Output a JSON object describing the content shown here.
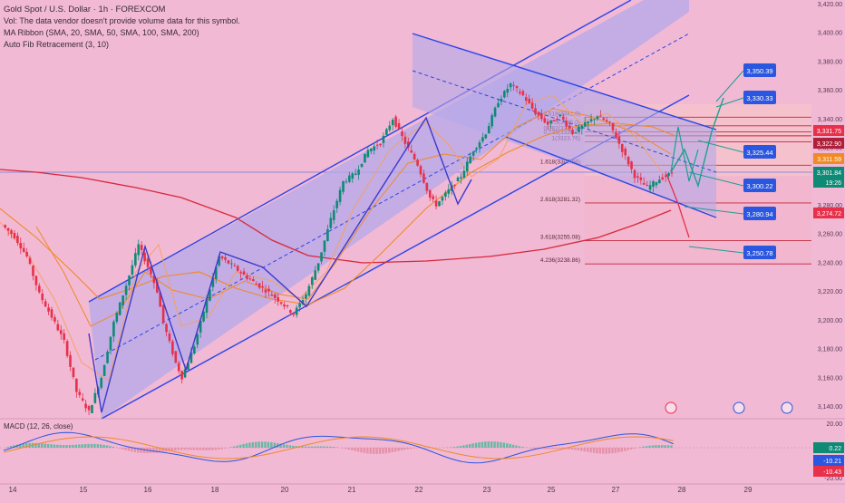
{
  "header": {
    "title": "Gold Spot / U.S. Dollar · 1h · FOREXCOM",
    "volume_note": "Vol: The data vendor doesn't provide volume data for this symbol.",
    "ma_ribbon": "MA Ribbon (SMA, 20, SMA, 50, SMA, 100, SMA, 200)",
    "fib": "Auto Fib Retracement (3, 10)"
  },
  "macd": {
    "label": "MACD (12, 26, close)"
  },
  "colors": {
    "background": "#f1b9d4",
    "channel_fill": "#b4a8ea",
    "channel_line": "#2a45e8",
    "up_candle": "#0e8a75",
    "down_candle": "#e8304a",
    "ma_fast": "#f08a24",
    "ma_slow": "#d8283a",
    "projection": "#1f9e8f",
    "price_box": "#2b56e0"
  },
  "chart_data": {
    "type": "candlestick",
    "symbol": "Gold Spot / U.S. Dollar",
    "interval": "1h",
    "source": "FOREXCOM",
    "x_ticks": [
      "14",
      "15",
      "16",
      "18",
      "20",
      "21",
      "22",
      "23",
      "25",
      "27",
      "28",
      "29"
    ],
    "y_ticks": [
      "3,140.00",
      "3,160.00",
      "3,180.00",
      "3,200.00",
      "3,220.00",
      "3,240.00",
      "3,260.00",
      "3,280.00",
      "3,300.00",
      "3,320.00",
      "3,340.00",
      "3,360.00",
      "3,380.00",
      "3,400.00",
      "3,420.00"
    ],
    "ylim": [
      3136,
      3422
    ],
    "price_path": [
      [
        0,
        3266
      ],
      [
        4,
        3258
      ],
      [
        8,
        3244
      ],
      [
        12,
        3218
      ],
      [
        16,
        3202
      ],
      [
        20,
        3185
      ],
      [
        24,
        3150
      ],
      [
        28,
        3136
      ],
      [
        32,
        3160
      ],
      [
        36,
        3198
      ],
      [
        40,
        3224
      ],
      [
        44,
        3252
      ],
      [
        48,
        3232
      ],
      [
        50,
        3220
      ],
      [
        52,
        3198
      ],
      [
        56,
        3170
      ],
      [
        58,
        3160
      ],
      [
        62,
        3182
      ],
      [
        66,
        3214
      ],
      [
        70,
        3244
      ],
      [
        74,
        3238
      ],
      [
        78,
        3231
      ],
      [
        82,
        3225
      ],
      [
        86,
        3219
      ],
      [
        90,
        3212
      ],
      [
        94,
        3204
      ],
      [
        98,
        3218
      ],
      [
        102,
        3240
      ],
      [
        106,
        3270
      ],
      [
        110,
        3296
      ],
      [
        114,
        3302
      ],
      [
        118,
        3318
      ],
      [
        122,
        3323
      ],
      [
        126,
        3340
      ],
      [
        130,
        3323
      ],
      [
        134,
        3308
      ],
      [
        138,
        3285
      ],
      [
        140,
        3280
      ],
      [
        144,
        3290
      ],
      [
        148,
        3300
      ],
      [
        152,
        3318
      ],
      [
        156,
        3330
      ],
      [
        160,
        3352
      ],
      [
        164,
        3364
      ],
      [
        168,
        3356
      ],
      [
        172,
        3344
      ],
      [
        176,
        3336
      ],
      [
        180,
        3342
      ],
      [
        184,
        3330
      ],
      [
        188,
        3336
      ],
      [
        192,
        3342
      ],
      [
        196,
        3336
      ],
      [
        200,
        3318
      ],
      [
        204,
        3300
      ],
      [
        208,
        3292
      ],
      [
        212,
        3298
      ],
      [
        216,
        3302
      ]
    ],
    "projected_paths": [
      {
        "points": [
          [
            216,
            3302
          ],
          [
            220,
            3325
          ],
          [
            224,
            3305
          ],
          [
            228,
            3330
          ],
          [
            233,
            3350
          ]
        ]
      },
      {
        "points": [
          [
            216,
            3302
          ],
          [
            219,
            3282
          ],
          [
            222,
            3260
          ]
        ]
      }
    ],
    "fib_levels": [
      {
        "ratio": "0.618",
        "price": 3341.0,
        "label": "0.618(3341.0)"
      },
      {
        "ratio": "0.5",
        "price": 3335.0,
        "label": "0.5(3335.0)"
      },
      {
        "ratio": "0.382",
        "price": 3330.8,
        "label": "0.382(3330.8)"
      },
      {
        "ratio": "0.236",
        "price": 3328.0,
        "label": "0.236(3328.0)"
      },
      {
        "ratio": "1",
        "price": 3323.76,
        "label": "1(3323.76)"
      },
      {
        "ratio": "1.618",
        "price": 3307.56,
        "label": "1.618(3307.56)"
      },
      {
        "ratio": "2.618",
        "price": 3281.32,
        "label": "2.618(3281.32)"
      },
      {
        "ratio": "3.618",
        "price": 3255.08,
        "label": "3.618(3255.08)"
      },
      {
        "ratio": "4.236",
        "price": 3238.86,
        "label": "4.236(3238.86)"
      }
    ],
    "target_labels": [
      {
        "price": 3350.39,
        "text": "3,350.39"
      },
      {
        "price": 3330.33,
        "text": "3,330.33"
      },
      {
        "price": 3325.44,
        "text": "3,325.44"
      },
      {
        "price": 3300.22,
        "text": "3,300.22"
      },
      {
        "price": 3280.94,
        "text": "3,280.94"
      },
      {
        "price": 3250.78,
        "text": "3,250.78"
      }
    ],
    "axis_price_tags": [
      {
        "text": "3,331.75",
        "color": "#e8304a"
      },
      {
        "text": "3,322.90",
        "color": "#b01f3a"
      },
      {
        "text": "3,311.59",
        "color": "#f08a24"
      },
      {
        "text": "3,301.84",
        "color": "#0e8a75"
      },
      {
        "text": "19:26",
        "color": "#0e8a75"
      },
      {
        "text": "3,274.72",
        "color": "#e8304a"
      }
    ],
    "macd": {
      "y_ticks": [
        "20.00",
        "-20.00"
      ],
      "values": [
        {
          "text": "0.22",
          "color": "#0e8a75"
        },
        {
          "text": "-10.21",
          "color": "#2b56e0"
        },
        {
          "text": "-10.43",
          "color": "#e8304a"
        }
      ]
    }
  }
}
